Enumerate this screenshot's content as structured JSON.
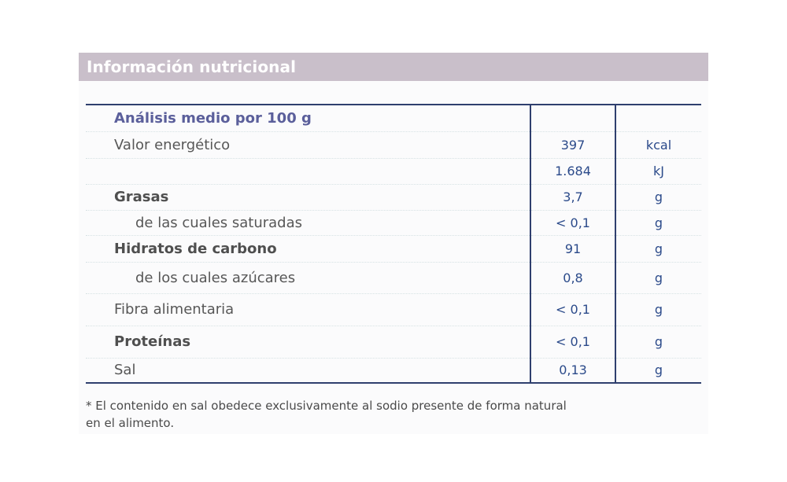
{
  "title": "Información nutricional",
  "table": {
    "rows": [
      {
        "label": "Análisis medio por 100 g",
        "value": "",
        "unit": ""
      },
      {
        "label": "Valor energético",
        "value": "397",
        "unit": "kcal"
      },
      {
        "label": "",
        "value": "1.684",
        "unit": "kJ"
      },
      {
        "label": "Grasas",
        "value": "3,7",
        "unit": "g"
      },
      {
        "label": "de las cuales saturadas",
        "value": "< 0,1",
        "unit": "g"
      },
      {
        "label": "Hidratos de carbono",
        "value": "91",
        "unit": "g"
      },
      {
        "label": "de los cuales azúcares",
        "value": "0,8",
        "unit": "g"
      },
      {
        "label": "Fibra alimentaria",
        "value": "< 0,1",
        "unit": "g"
      },
      {
        "label": "Proteínas",
        "value": "< 0,1",
        "unit": "g"
      },
      {
        "label": "Sal",
        "value": "0,13",
        "unit": "g"
      }
    ]
  },
  "footnote": {
    "line1": "* El contenido en sal obedece exclusivamente al sodio presente de forma natural",
    "line2": "en el alimento."
  },
  "colors": {
    "header_band": "#c9bfca",
    "table_border": "#2f3f6e",
    "value_text": "#2b4a8a",
    "heading_text": "#5b5f9b"
  }
}
